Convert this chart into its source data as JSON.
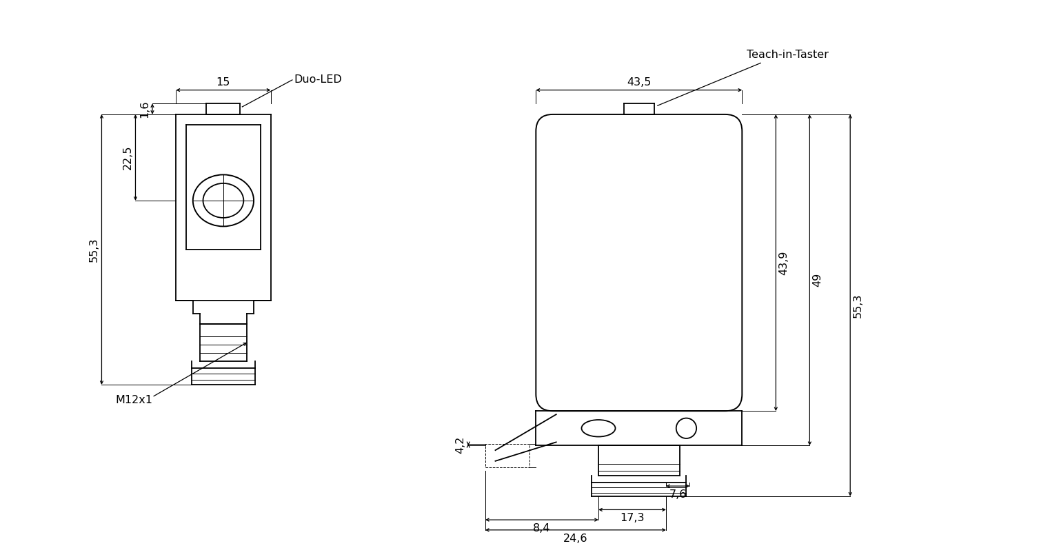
{
  "bg_color": "#ffffff",
  "line_color": "#000000",
  "figsize": [
    15.36,
    7.95
  ],
  "dpi": 100,
  "labels": {
    "duo_led": "Duo-LED",
    "teach_in": "Teach-in-Taster",
    "m12x1": "M12x1"
  }
}
